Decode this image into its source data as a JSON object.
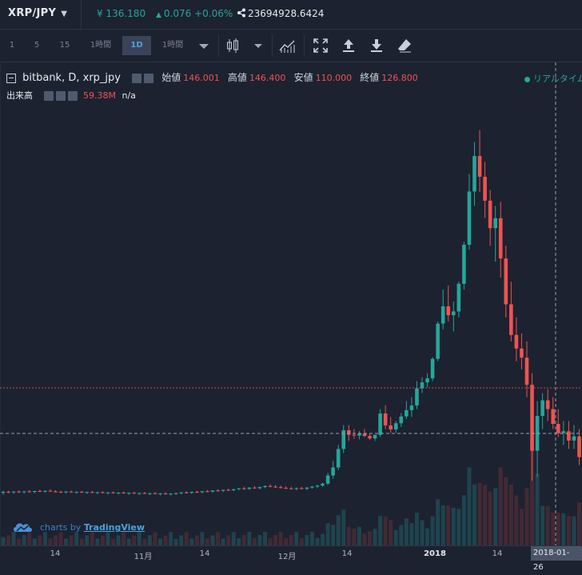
{
  "header": {
    "pair": "XRP/JPY",
    "price": "¥ 136.180",
    "change": "0.076 +0.06%",
    "volume": "23694928.6424"
  },
  "toolbar": {
    "intervals": [
      "1",
      "5",
      "15",
      "1時間",
      "1D",
      "1時間"
    ],
    "active_interval": "1D",
    "icons": [
      "candle-style-icon",
      "dropdown-icon",
      "indicators-icon",
      "fullscreen-icon",
      "upload-icon",
      "download-icon",
      "eraser-icon"
    ]
  },
  "legend": {
    "symbol": "bitbank, D, xrp_jpy",
    "open_label": "始値",
    "open": "146.001",
    "high_label": "高値",
    "high": "146.400",
    "low_label": "安値",
    "low": "110.000",
    "close_label": "終値",
    "close": "126.800",
    "volume_label": "出来高",
    "volume_value": "59.38M",
    "volume_na": "n/a"
  },
  "realtime_label": "リアルタイム",
  "branding": {
    "prefix": "charts by",
    "name": "TradingView"
  },
  "xaxis": {
    "ticks": [
      "14",
      "11月",
      "14",
      "12月",
      "14",
      "2018",
      "14"
    ],
    "crosshair_date": "2018-01-26"
  },
  "colors": {
    "up": "#26a69a",
    "down": "#ef5350",
    "background": "#1c2230",
    "accent": "#4aa3df"
  },
  "chart_data": {
    "type": "candlestick",
    "period": "D",
    "candles": [
      [
        24,
        25,
        23,
        24.5
      ],
      [
        24.5,
        25,
        23.8,
        24.2
      ],
      [
        24.2,
        24.8,
        23.5,
        24.6
      ],
      [
        24.6,
        25.2,
        24,
        24.3
      ],
      [
        24.3,
        24.9,
        23.6,
        24.7
      ],
      [
        24.7,
        25.4,
        24.2,
        24.4
      ],
      [
        24.4,
        25,
        23.8,
        24.9
      ],
      [
        24.9,
        25.6,
        24.4,
        24.6
      ],
      [
        24.6,
        25.2,
        24,
        25
      ],
      [
        25,
        25.8,
        24.5,
        24.7
      ],
      [
        24.7,
        25.3,
        24.1,
        24.5
      ],
      [
        24.5,
        25,
        23.9,
        24.3
      ],
      [
        24.3,
        24.8,
        23.6,
        24.6
      ],
      [
        24.6,
        25.1,
        24,
        24.2
      ],
      [
        24.2,
        24.7,
        23.5,
        24.5
      ],
      [
        24.5,
        25,
        23.9,
        24.1
      ],
      [
        24.1,
        24.6,
        23.4,
        24.4
      ],
      [
        24.4,
        24.9,
        23.8,
        24
      ],
      [
        24,
        24.5,
        23.3,
        24.3
      ],
      [
        24.3,
        24.8,
        23.7,
        23.9
      ],
      [
        23.9,
        24.4,
        23.2,
        24.2
      ],
      [
        24.2,
        24.7,
        23.6,
        23.8
      ],
      [
        23.8,
        24.3,
        23.1,
        24.1
      ],
      [
        24.1,
        24.6,
        23.5,
        23.7
      ],
      [
        23.7,
        24.2,
        23,
        24
      ],
      [
        24,
        24.5,
        23.4,
        23.6
      ],
      [
        23.6,
        24.1,
        22.9,
        23.9
      ],
      [
        23.9,
        24.4,
        23.3,
        23.5
      ],
      [
        23.5,
        24,
        22.8,
        23.8
      ],
      [
        23.8,
        24.3,
        23.2,
        23.4
      ],
      [
        23.4,
        23.9,
        22.7,
        23.7
      ],
      [
        23.7,
        24.2,
        23.1,
        23.3
      ],
      [
        23.3,
        23.8,
        22.6,
        23.6
      ],
      [
        23.6,
        24.1,
        23,
        23.8
      ],
      [
        23.8,
        24.4,
        23.2,
        24.2
      ],
      [
        24.2,
        24.8,
        23.6,
        24
      ],
      [
        24,
        24.6,
        23.4,
        24.5
      ],
      [
        24.5,
        25.1,
        23.9,
        24.3
      ],
      [
        24.3,
        24.9,
        23.7,
        24.8
      ],
      [
        24.8,
        25.4,
        24.2,
        24.6
      ],
      [
        24.6,
        25.2,
        24,
        25.2
      ],
      [
        25.2,
        25.8,
        24.6,
        25
      ],
      [
        25,
        25.6,
        24.4,
        25.5
      ],
      [
        25.5,
        26.1,
        24.9,
        25.3
      ],
      [
        25.3,
        25.9,
        24.7,
        25.8
      ],
      [
        25.8,
        26.5,
        25.2,
        26.2
      ],
      [
        26.2,
        27,
        25.6,
        26
      ],
      [
        26,
        26.8,
        25.4,
        26.6
      ],
      [
        26.6,
        27.4,
        26,
        26.3
      ],
      [
        26.3,
        27.1,
        25.7,
        26.9
      ],
      [
        26.9,
        27.7,
        26.3,
        27.4
      ],
      [
        27.4,
        28.2,
        26.8,
        27.1
      ],
      [
        27.1,
        27.9,
        26.5,
        26.8
      ],
      [
        26.8,
        27.6,
        26.2,
        26.5
      ],
      [
        26.5,
        27.3,
        25.9,
        26.2
      ],
      [
        26.2,
        27,
        25.6,
        25.9
      ],
      [
        25.9,
        26.7,
        25.3,
        26.3
      ],
      [
        26.3,
        27.1,
        25.7,
        26
      ],
      [
        26,
        26.8,
        25.4,
        26.6
      ],
      [
        26.6,
        27.4,
        26,
        27.1
      ],
      [
        27.1,
        28,
        26.5,
        27.6
      ],
      [
        27.6,
        29,
        27,
        28.6
      ],
      [
        28.6,
        34,
        27.8,
        32.7
      ],
      [
        32.7,
        40,
        31,
        36.7
      ],
      [
        36.7,
        48,
        35.4,
        46
      ],
      [
        46,
        58,
        44,
        55.4
      ],
      [
        55.4,
        58,
        50,
        53.1
      ],
      [
        53.1,
        56,
        51,
        52.7
      ],
      [
        52.7,
        55,
        50.8,
        53.6
      ],
      [
        53.6,
        56,
        52,
        52.5
      ],
      [
        52.5,
        54,
        50.5,
        51.3
      ],
      [
        51.3,
        53,
        50,
        53.1
      ],
      [
        53.1,
        66,
        52,
        63.8
      ],
      [
        63.8,
        68,
        56,
        57.8
      ],
      [
        57.8,
        62,
        54,
        55.8
      ],
      [
        55.8,
        60,
        54,
        58.9
      ],
      [
        58.9,
        64,
        57,
        62.3
      ],
      [
        62.3,
        70,
        61,
        65.5
      ],
      [
        65.5,
        72,
        62,
        67.8
      ],
      [
        67.8,
        80,
        66,
        76.4
      ],
      [
        76.4,
        82,
        74,
        79.4
      ],
      [
        79.4,
        84,
        77,
        81.4
      ],
      [
        81.4,
        92,
        80,
        91.2
      ],
      [
        91.2,
        110,
        90,
        108.9
      ],
      [
        108.9,
        126,
        106,
        117.6
      ],
      [
        117.6,
        128,
        110,
        113.1
      ],
      [
        113.1,
        120,
        105,
        115
      ],
      [
        115,
        130,
        112,
        128.9
      ],
      [
        128.9,
        150,
        126,
        148.5
      ],
      [
        148.5,
        184,
        146,
        175.2
      ],
      [
        175.2,
        200,
        168,
        193
      ],
      [
        193,
        206,
        175,
        182.6
      ],
      [
        182.6,
        190,
        162,
        170.6
      ],
      [
        170.6,
        176,
        148,
        156.8
      ],
      [
        156.8,
        168,
        140,
        161.8
      ],
      [
        161.8,
        170,
        132,
        141.6
      ],
      [
        141.6,
        148,
        112,
        118.6
      ],
      [
        118.6,
        130,
        100,
        103.2
      ],
      [
        103.2,
        112,
        90,
        96.4
      ],
      [
        96.4,
        104,
        86,
        91.8
      ],
      [
        91.8,
        100,
        72,
        78.2
      ],
      [
        78.2,
        84,
        30,
        45.1
      ],
      [
        45.1,
        70,
        32,
        62.6
      ],
      [
        62.6,
        74,
        56,
        70.4
      ],
      [
        70.4,
        76,
        60,
        66
      ],
      [
        66,
        72,
        56,
        58.6
      ],
      [
        58.6,
        66,
        52,
        54
      ],
      [
        54,
        60,
        48,
        54.9
      ],
      [
        54.9,
        60,
        46,
        50.2
      ],
      [
        50.2,
        58,
        46,
        52.3
      ],
      [
        52.3,
        56,
        38,
        41.9
      ],
      [
        41.9,
        50,
        38,
        46.7
      ],
      [
        46.7,
        50,
        44,
        46.3
      ]
    ]
  }
}
